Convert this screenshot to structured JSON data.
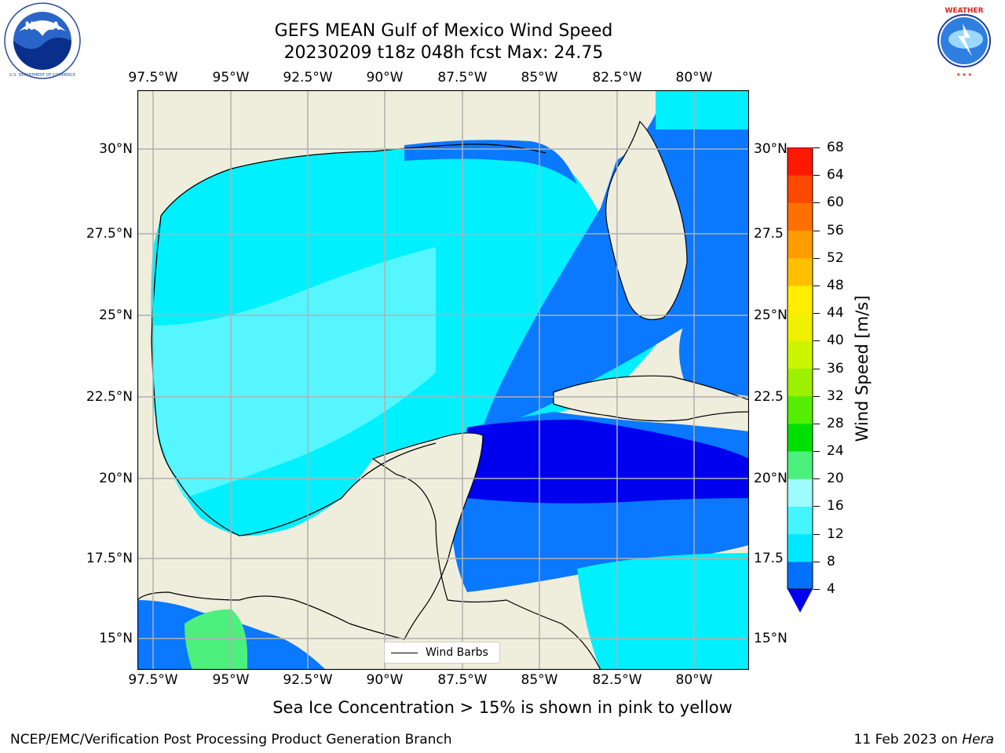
{
  "title": {
    "line1": "GEFS MEAN Gulf of Mexico Wind Speed",
    "line2": "20230209 t18z 048h fcst   Max: 24.75"
  },
  "logos": {
    "left": {
      "name": "NOAA",
      "ring_text": "NATIONAL OCEANIC AND ATMOSPHERIC ADMINISTRATION · U.S. DEPARTMENT OF COMMERCE"
    },
    "right": {
      "name": "NATIONAL WEATHER SERVICE"
    }
  },
  "map": {
    "lon_labels": [
      "97.5°W",
      "95°W",
      "92.5°W",
      "90°W",
      "87.5°W",
      "85°W",
      "82.5°W",
      "80°W"
    ],
    "lat_labels": [
      "30°N",
      "27.5°N",
      "25°N",
      "22.5°N",
      "20°N",
      "17.5°N",
      "15°N"
    ],
    "right_lat_labels": [
      "30°N",
      "27.5",
      "25°N",
      "22.5",
      "20°N",
      "17.5",
      "15°N"
    ],
    "legend": "Wind Barbs",
    "colors": {
      "land": "#efeddc",
      "grid": "#b0b0b0"
    }
  },
  "colorbar": {
    "label": "Wind Speed [m/s]",
    "ticks": [
      "68",
      "64",
      "60",
      "56",
      "52",
      "48",
      "44",
      "40",
      "36",
      "32",
      "28",
      "24",
      "20",
      "16",
      "12",
      "8",
      "4"
    ],
    "colors": [
      "#0000ee",
      "#0070ff",
      "#00e8ff",
      "#44f4ff",
      "#9efcff",
      "#4cf07c",
      "#00e000",
      "#55ee00",
      "#9cf000",
      "#ccf600",
      "#f0f000",
      "#ffee00",
      "#ffc000",
      "#ff9c00",
      "#ff7000",
      "#ff4800",
      "#ff1800",
      "#ff0000"
    ]
  },
  "subnote": "Sea Ice Concentration > 15% is shown in pink to yellow",
  "footer": {
    "left": "NCEP/EMC/Verification Post Processing Product Generation Branch",
    "right_prefix": "11 Feb 2023 on",
    "right_host": "Hera"
  }
}
